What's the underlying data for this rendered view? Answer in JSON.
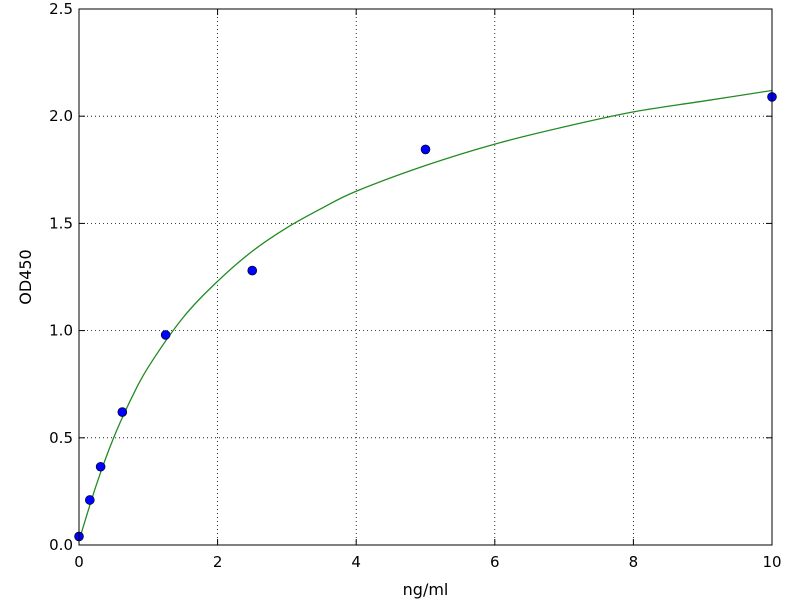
{
  "chart_data": {
    "type": "scatter",
    "title": "",
    "xlabel": "ng/ml",
    "ylabel": "OD450",
    "xlim": [
      0,
      10
    ],
    "ylim": [
      0,
      2.5
    ],
    "x_ticks": [
      0,
      2,
      4,
      6,
      8,
      10
    ],
    "x_tick_labels": [
      "0",
      "2",
      "4",
      "6",
      "8",
      "10"
    ],
    "y_ticks": [
      0,
      0.5,
      1.0,
      1.5,
      2.0,
      2.5
    ],
    "y_tick_labels": [
      "0.0",
      "0.5",
      "1.0",
      "1.5",
      "2.0",
      "2.5"
    ],
    "grid": true,
    "series": [
      {
        "kind": "points",
        "color": "#0000ff",
        "x": [
          0,
          0.156,
          0.312,
          0.625,
          1.25,
          2.5,
          5,
          10
        ],
        "y": [
          0.04,
          0.21,
          0.365,
          0.62,
          0.98,
          1.28,
          1.845,
          2.09
        ]
      },
      {
        "kind": "fit_curve",
        "color": "#228b22",
        "x": [
          0,
          0.25,
          0.5,
          0.75,
          1,
          1.5,
          2,
          2.5,
          3,
          3.5,
          4,
          5,
          6,
          7,
          8,
          9,
          10
        ],
        "y": [
          0.02,
          0.28,
          0.5,
          0.68,
          0.83,
          1.06,
          1.23,
          1.37,
          1.48,
          1.57,
          1.65,
          1.77,
          1.87,
          1.95,
          2.02,
          2.07,
          2.12
        ]
      }
    ]
  }
}
